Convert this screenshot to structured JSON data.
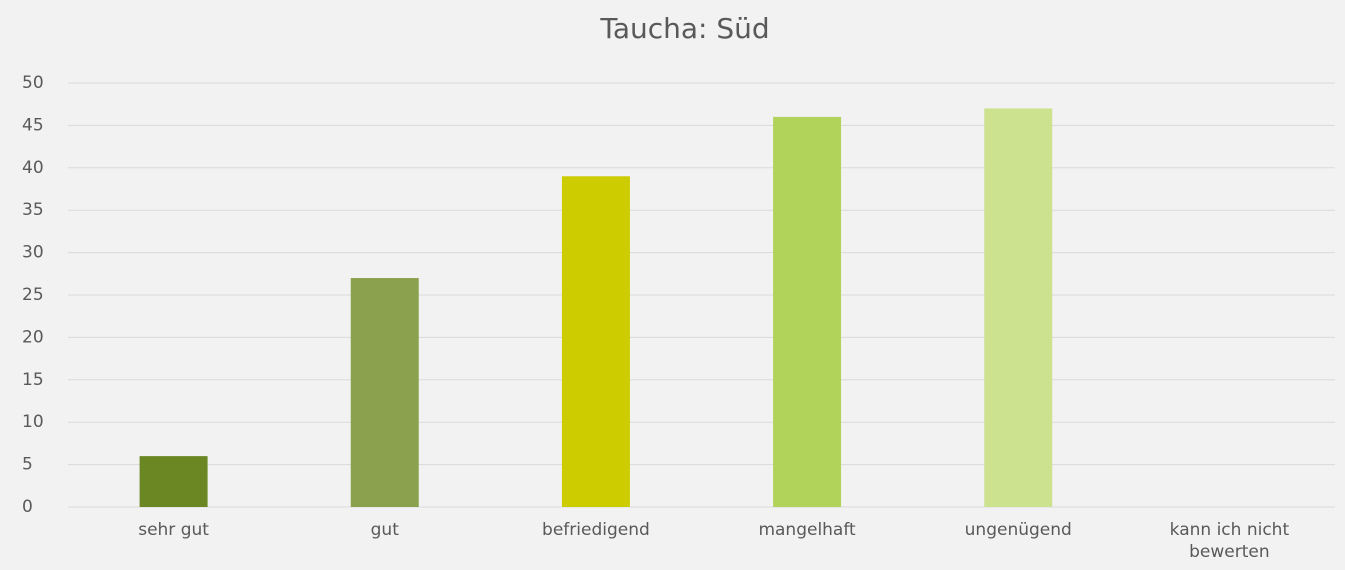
{
  "chart_data": {
    "type": "bar",
    "title": "Taucha: Süd",
    "categories": [
      "sehr gut",
      "gut",
      "befriedigend",
      "mangelhaft",
      "ungenügend",
      "kann ich nicht bewerten"
    ],
    "values": [
      6,
      27,
      39,
      46,
      47,
      0
    ],
    "colors": [
      "#6b8723",
      "#8ba14e",
      "#cccc00",
      "#b2d35a",
      "#cce28e",
      "#dfe9bd"
    ],
    "ylim": [
      0,
      50
    ],
    "yticks": [
      0,
      5,
      10,
      15,
      20,
      25,
      30,
      35,
      40,
      45,
      50
    ],
    "grid": true
  }
}
